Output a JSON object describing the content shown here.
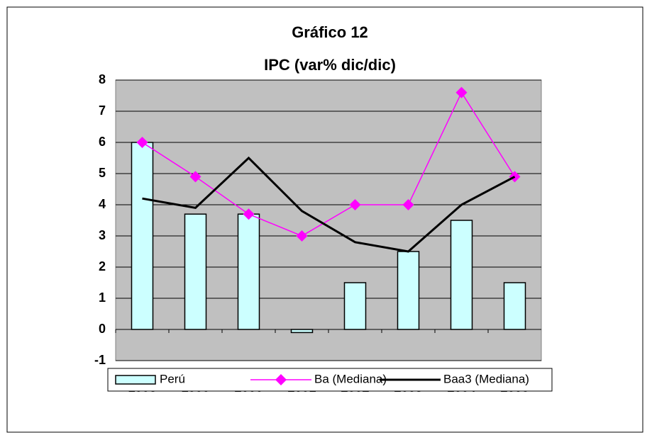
{
  "chart_data": {
    "type": "bar",
    "title": "Gráfico 12",
    "subtitle": "IPC (var% dic/dic)",
    "categories": [
      "1998",
      "1999",
      "2000",
      "2001",
      "2002",
      "2003",
      "2004",
      "2005"
    ],
    "series": [
      {
        "name": "Perú",
        "type": "bar",
        "color": "#ccffff",
        "values": [
          6.0,
          3.7,
          3.7,
          -0.1,
          1.5,
          2.5,
          3.5,
          1.5
        ]
      },
      {
        "name": "Ba (Mediana)",
        "type": "line",
        "marker": "diamond",
        "color": "#ff00ff",
        "values": [
          6.0,
          4.9,
          3.7,
          3.0,
          4.0,
          4.0,
          7.6,
          4.9
        ]
      },
      {
        "name": "Baa3 (Mediana)",
        "type": "line",
        "color": "#000000",
        "values": [
          4.2,
          3.9,
          5.5,
          3.8,
          2.8,
          2.5,
          4.0,
          4.9
        ]
      }
    ],
    "ylim": [
      -1,
      8
    ],
    "yticks": [
      -1,
      0,
      1,
      2,
      3,
      4,
      5,
      6,
      7,
      8
    ],
    "grid": true,
    "legend": "bottom"
  }
}
